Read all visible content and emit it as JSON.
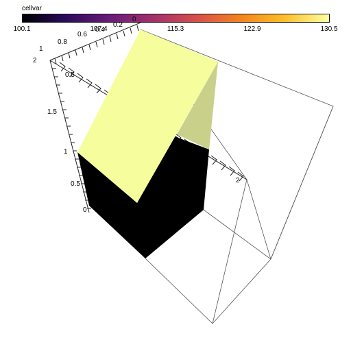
{
  "colorbar": {
    "title": "cellvar",
    "colors": [
      "#000004",
      "#2c0b5a",
      "#6a1b7a",
      "#a3306a",
      "#d7504a",
      "#f4851e",
      "#fbbf2c",
      "#fcffa4"
    ],
    "ticks": [
      "100.1",
      "107.4",
      "115.3",
      "122.9",
      "130.5"
    ]
  },
  "scene": {
    "top_color": "#f5fd9d",
    "side_color": "#c9d08a",
    "dark_color": "#000000",
    "axis_labels": {
      "depth": [
        "0",
        "0.2",
        "0.4",
        "0.6",
        "0.8",
        "1"
      ],
      "vertical": [
        "0",
        "0.5",
        "1",
        "1.5",
        "2"
      ],
      "horizontal": [
        "0.5",
        "2"
      ]
    }
  }
}
